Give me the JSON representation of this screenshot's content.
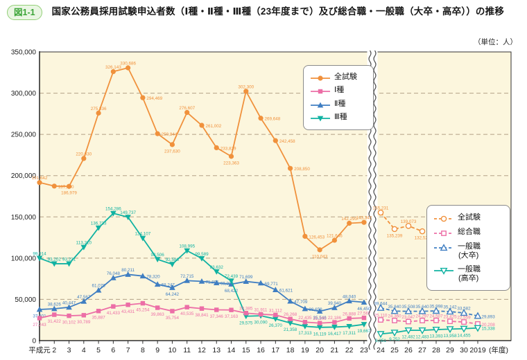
{
  "header": {
    "figure_label": "図1-1",
    "title": "国家公務員採用試験申込者数（Ⅰ種・Ⅱ種・Ⅲ種（23年度まで）及び総合職・一般職（大卒・高卒））の推移"
  },
  "unit_note": "（単位：人）",
  "colors": {
    "plot_bg": "#fcf6dd",
    "grid": "#b3a186",
    "axis": "#2f2f2f",
    "break_mark": "#4a4a4a",
    "orange": "#f0913c",
    "pink": "#ec6ea6",
    "blue": "#3f7ec2",
    "teal": "#10b2a2",
    "badge_bg": "#eaf6e3",
    "badge_border": "#92cf77",
    "badge_text": "#3ba437"
  },
  "chart_data": {
    "type": "line",
    "title": "国家公務員採用試験申込者数（Ⅰ種・Ⅱ種・Ⅲ種（23年度まで）及び総合職・一般職（大卒・高卒））の推移",
    "unit": "人",
    "grid": "dashed-horizontal",
    "y_axis": {
      "min": 0,
      "max": 350000,
      "step": 50000,
      "tick_labels": [
        "0",
        "50,000",
        "100,000",
        "150,000",
        "200,000",
        "250,000",
        "300,000",
        "350,000"
      ]
    },
    "x_axis": {
      "heisei_labels": [
        "平成元",
        "2",
        "3",
        "4",
        "5",
        "6",
        "7",
        "8",
        "9",
        "10",
        "11",
        "12",
        "13",
        "14",
        "15",
        "16",
        "17",
        "18",
        "19",
        "20",
        "21",
        "22",
        "23"
      ],
      "new_labels": [
        "24",
        "25",
        "26",
        "27",
        "28",
        "29",
        "30",
        "2019"
      ],
      "axis_suffix": "(年度)",
      "break_between": [
        "23",
        "24"
      ]
    },
    "series_heisei": [
      {
        "name": "全試験",
        "legend_lines": [
          "全試験"
        ],
        "color": "#f0913c",
        "marker": "circle",
        "line": "solid",
        "fill": "filled",
        "values": [
          191642,
          187340,
          186979,
          220830,
          275836,
          326143,
          330686,
          294469,
          250844,
          237630,
          276607,
          261002,
          233829,
          223363,
          302300,
          269648,
          242458,
          208850,
          126453,
          110043,
          121646,
          142290,
          143342
        ]
      },
      {
        "name": "Ⅰ種",
        "legend_lines": [
          "Ⅰ種"
        ],
        "color": "#ec6ea6",
        "marker": "square",
        "line": "solid",
        "fill": "filled",
        "values": [
          27243,
          31422,
          30102,
          30789,
          35887,
          41433,
          43431,
          45254,
          39863,
          35754,
          40535,
          38841,
          37346,
          37163,
          33385,
          31911,
          31112,
          26268,
          22435,
          21200,
          22186,
          26888,
          27567
        ]
      },
      {
        "name": "Ⅱ種",
        "legend_lines": [
          "Ⅱ種"
        ],
        "color": "#3f7ec2",
        "marker": "triangle-up",
        "line": "solid",
        "fill": "filled",
        "values": [
          37801,
          38626,
          40447,
          47567,
          61076,
          76048,
          80211,
          78320,
          68247,
          64242,
          72715,
          71891,
          69985,
          68422,
          71699,
          69771,
          61621,
          47709,
          38659,
          35546,
          39940,
          48040,
          46450
        ]
      },
      {
        "name": "Ⅲ種",
        "legend_lines": [
          "Ⅲ種"
        ],
        "color": "#10b2a2",
        "marker": "triangle-down",
        "line": "solid",
        "fill": "filled",
        "values": [
          99914,
          93202,
          93231,
          113210,
          136733,
          154286,
          149737,
          124107,
          98506,
          92586,
          108995,
          99589,
          83632,
          72439,
          29575,
          30090,
          26370,
          21358,
          17313,
          16119,
          16417,
          17311,
          19667
        ]
      }
    ],
    "series_new": [
      {
        "name": "全試験",
        "legend_lines": [
          "全試験"
        ],
        "color": "#f0913c",
        "marker": "circle",
        "line": "dashed",
        "fill": "hollow",
        "values": [
          155231,
          135239,
          139073,
          132521,
          138881,
          134656,
          130090,
          124666
        ]
      },
      {
        "name": "総合職",
        "legend_lines": [
          "総合職"
        ],
        "color": "#ec6ea6",
        "marker": "square",
        "line": "dashed",
        "fill": "hollow",
        "values": [
          25110,
          24360,
          23047,
          24297,
          24507,
          23425,
          22559,
          20208
        ]
      },
      {
        "name": "一般職（大卒）",
        "legend_lines": [
          "一般職",
          "(大卒)"
        ],
        "color": "#3f7ec2",
        "marker": "triangle-up",
        "line": "dashed",
        "fill": "hollow",
        "values": [
          39644,
          35840,
          35508,
          35640,
          35998,
          35142,
          33582,
          29893
        ]
      },
      {
        "name": "一般職（高卒）",
        "legend_lines": [
          "一般職",
          "(高卒)"
        ],
        "color": "#10b2a2",
        "marker": "triangle-down",
        "line": "solid",
        "fill": "hollow",
        "values": [
          8051,
          9752,
          12482,
          12483,
          13393,
          13958,
          14455,
          15338
        ]
      }
    ]
  }
}
